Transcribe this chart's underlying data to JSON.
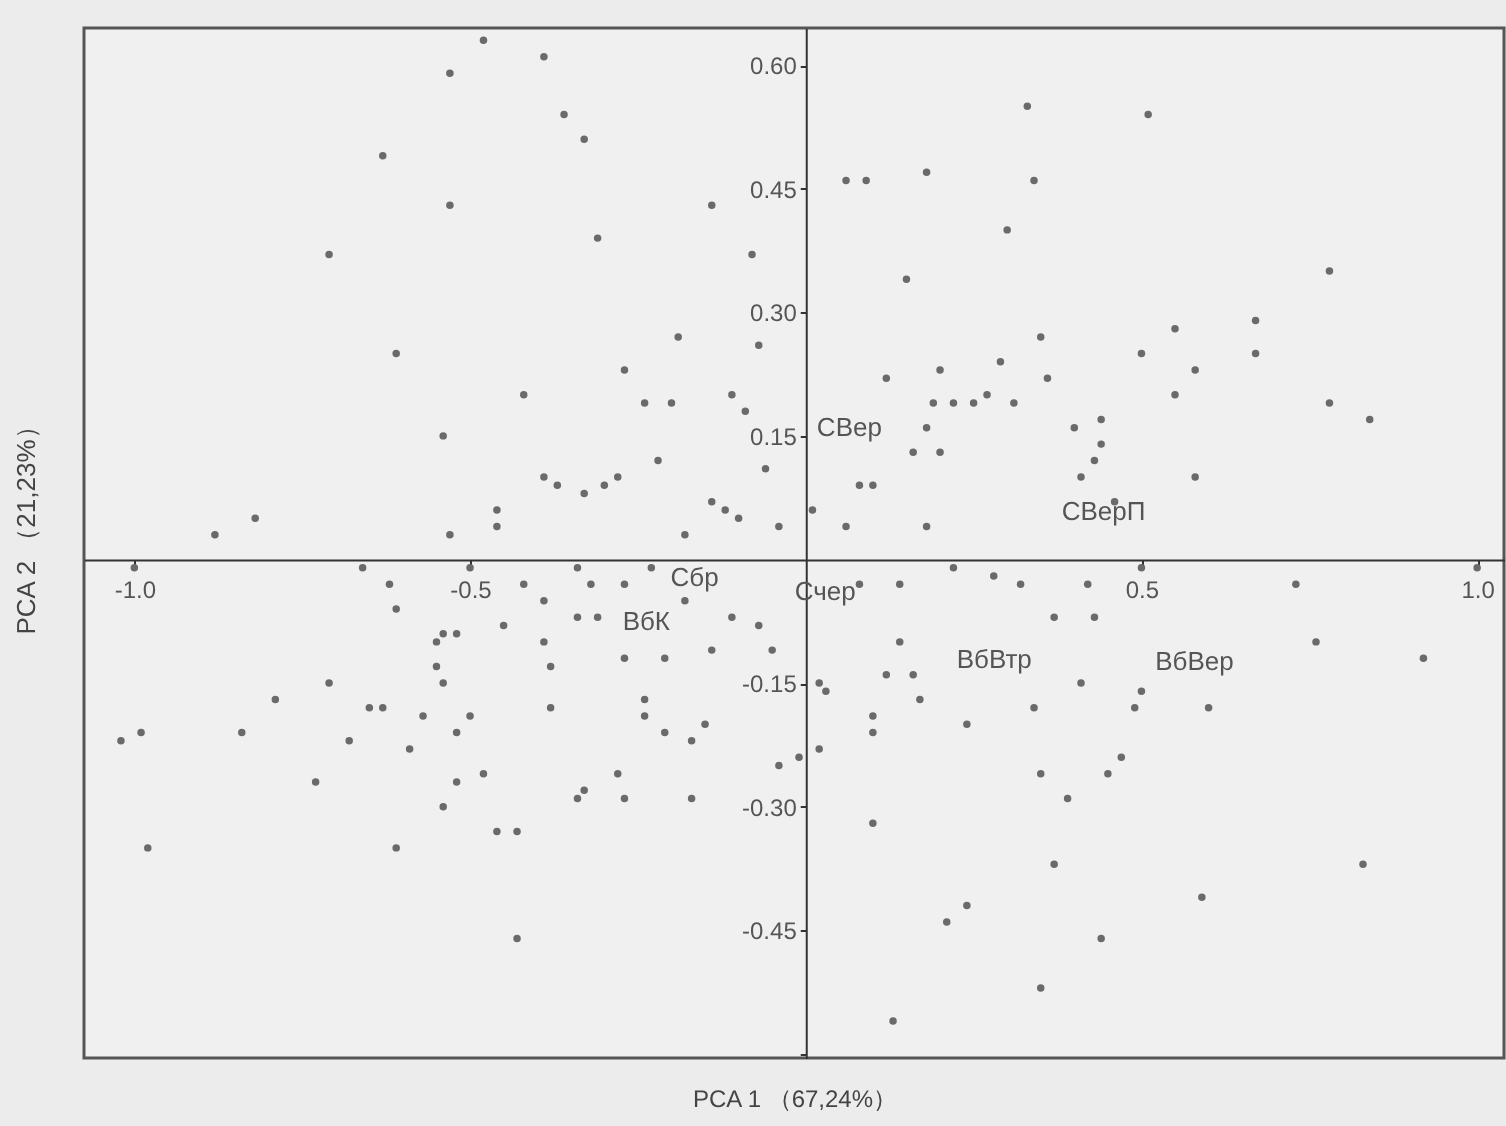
{
  "chart_data": {
    "type": "scatter",
    "xlabel": "PCA 1 （67,24%）",
    "ylabel": "PCA 2 （21,23%）",
    "xlim": [
      -1.075,
      1.04
    ],
    "ylim": [
      -0.605,
      0.645
    ],
    "xticks": [
      {
        "value": -1,
        "label": "-1.0"
      },
      {
        "value": -0.5,
        "label": "-0.5"
      },
      {
        "value": 0.5,
        "label": "0.5"
      },
      {
        "value": 1,
        "label": "1.0"
      }
    ],
    "yticks": [
      {
        "value": -0.6,
        "label": null
      },
      {
        "value": -0.45,
        "label": "-0.45"
      },
      {
        "value": -0.3,
        "label": "-0.30"
      },
      {
        "value": -0.15,
        "label": "-0.15"
      },
      {
        "value": 0.15,
        "label": "0.15"
      },
      {
        "value": 0.3,
        "label": "0.30"
      },
      {
        "value": 0.45,
        "label": "0.45"
      },
      {
        "value": 0.6,
        "label": "0.60"
      }
    ],
    "grid": false,
    "series": [
      {
        "color": "#6a6a6a",
        "x": [
          -0.48,
          -0.39,
          -0.53,
          -0.36,
          -0.33,
          -0.63,
          -0.53,
          -0.71,
          -0.31,
          -0.14,
          -0.08,
          -0.61,
          -0.19,
          -0.07,
          -0.27,
          -0.42,
          -0.24,
          -0.2,
          -0.11,
          -0.09,
          -0.54,
          -0.22,
          -0.06,
          -0.39,
          -0.37,
          -0.3,
          -0.28,
          -0.33,
          -0.46,
          -0.46,
          -0.82,
          -0.14,
          -0.12,
          -0.1,
          -0.04,
          -0.88,
          -0.53,
          -0.18,
          0.33,
          0.51,
          0.06,
          0.09,
          0.18,
          0.34,
          0.3,
          0.15,
          0.78,
          0.35,
          0.55,
          0.67,
          0.5,
          0.67,
          0.58,
          0.2,
          0.29,
          0.12,
          0.36,
          0.55,
          0.19,
          0.22,
          0.25,
          0.27,
          0.31,
          0.78,
          0.84,
          0.4,
          0.44,
          0.18,
          0.44,
          0.16,
          0.2,
          0.43,
          0.41,
          0.58,
          0.08,
          0.1,
          0.01,
          0.06,
          0.18,
          0.46,
          -1.0,
          -0.66,
          -0.62,
          -0.61,
          -0.5,
          -0.42,
          -0.39,
          -0.34,
          -0.32,
          -0.34,
          -0.31,
          -0.27,
          -0.23,
          -0.18,
          -0.11,
          -0.07,
          -0.54,
          -0.52,
          -0.55,
          -0.45,
          -0.39,
          -0.27,
          -0.21,
          -0.14,
          -0.05,
          -0.55,
          -0.54,
          -0.38,
          -0.71,
          -0.79,
          -0.65,
          -0.63,
          -0.57,
          -0.5,
          -0.38,
          -0.24,
          -0.24,
          -0.21,
          -0.17,
          -0.15,
          -0.01,
          -0.04,
          -0.99,
          -1.02,
          -0.84,
          -0.68,
          -0.52,
          -0.59,
          -0.73,
          -0.52,
          -0.48,
          -0.28,
          -0.33,
          -0.34,
          -0.27,
          -0.54,
          -0.17,
          -0.46,
          -0.43,
          -0.98,
          -0.61,
          -0.43,
          0.22,
          0.5,
          0.73,
          1.0,
          0.14,
          0.12,
          0.16,
          0.17,
          0.02,
          0.03,
          0.41,
          0.34,
          0.49,
          0.6,
          0.5,
          0.1,
          0.1,
          0.24,
          0.02,
          0.76,
          0.92,
          0.35,
          0.47,
          0.45,
          0.39,
          0.1,
          0.37,
          0.83,
          0.24,
          0.21,
          0.44,
          0.59,
          0.35,
          0.13,
          0.08,
          0.14,
          0.28,
          0.32,
          0.37,
          0.43,
          0.42
        ],
        "values": [
          0.63,
          0.61,
          0.59,
          0.54,
          0.51,
          0.49,
          0.43,
          0.37,
          0.39,
          0.43,
          0.37,
          0.25,
          0.27,
          0.26,
          0.23,
          0.2,
          0.19,
          0.19,
          0.2,
          0.18,
          0.15,
          0.12,
          0.11,
          0.1,
          0.09,
          0.09,
          0.1,
          0.08,
          0.06,
          0.04,
          0.05,
          0.07,
          0.06,
          0.05,
          0.04,
          0.03,
          0.03,
          0.03,
          0.55,
          0.54,
          0.46,
          0.46,
          0.47,
          0.46,
          0.4,
          0.34,
          0.35,
          0.27,
          0.28,
          0.29,
          0.25,
          0.25,
          0.23,
          0.23,
          0.24,
          0.22,
          0.22,
          0.2,
          0.19,
          0.19,
          0.19,
          0.2,
          0.19,
          0.19,
          0.17,
          0.16,
          0.17,
          0.16,
          0.14,
          0.13,
          0.13,
          0.12,
          0.1,
          0.1,
          0.09,
          0.09,
          0.06,
          0.04,
          0.04,
          0.07,
          -0.01,
          -0.01,
          -0.03,
          -0.06,
          -0.01,
          -0.03,
          -0.05,
          -0.01,
          -0.03,
          -0.07,
          -0.07,
          -0.03,
          -0.01,
          -0.05,
          -0.07,
          -0.08,
          -0.09,
          -0.09,
          -0.1,
          -0.08,
          -0.1,
          -0.12,
          -0.12,
          -0.11,
          -0.11,
          -0.13,
          -0.15,
          -0.13,
          -0.15,
          -0.17,
          -0.18,
          -0.18,
          -0.19,
          -0.19,
          -0.18,
          -0.17,
          -0.19,
          -0.21,
          -0.22,
          -0.2,
          -0.24,
          -0.25,
          -0.21,
          -0.22,
          -0.21,
          -0.22,
          -0.21,
          -0.23,
          -0.27,
          -0.27,
          -0.26,
          -0.26,
          -0.28,
          -0.29,
          -0.29,
          -0.3,
          -0.29,
          -0.33,
          -0.33,
          -0.35,
          -0.35,
          -0.46,
          -0.01,
          -0.01,
          -0.03,
          -0.01,
          -0.1,
          -0.14,
          -0.14,
          -0.17,
          -0.15,
          -0.16,
          -0.15,
          -0.18,
          -0.18,
          -0.18,
          -0.16,
          -0.19,
          -0.21,
          -0.2,
          -0.23,
          -0.1,
          -0.12,
          -0.26,
          -0.24,
          -0.26,
          -0.29,
          -0.32,
          -0.37,
          -0.37,
          -0.42,
          -0.44,
          -0.46,
          -0.41,
          -0.52,
          -0.56,
          -0.03,
          -0.03,
          -0.02,
          -0.03,
          -0.07,
          -0.07,
          -0.03
        ]
      }
    ],
    "annotations": [
      "СВер",
      "СВерП",
      "Сбр",
      "ВбК",
      "Счер",
      "ВбВтр",
      "ВбВер"
    ]
  }
}
